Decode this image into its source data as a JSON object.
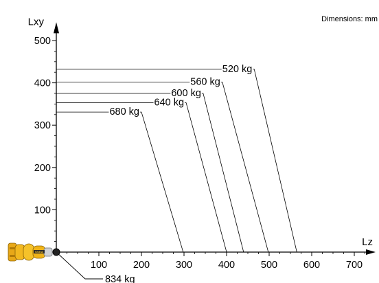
{
  "chart_data": {
    "type": "line",
    "title": "",
    "note": "Dimensions: mm",
    "xlabel": "Lz",
    "ylabel": "Lxy",
    "xlim": [
      0,
      750
    ],
    "ylim": [
      0,
      540
    ],
    "xticks": [
      100,
      200,
      300,
      400,
      500,
      600,
      700
    ],
    "yticks": [
      100,
      200,
      300,
      400,
      500
    ],
    "grid": false,
    "series": [
      {
        "name": "520 kg",
        "points": [
          [
            0,
            432
          ],
          [
            465,
            432
          ],
          [
            565,
            0
          ]
        ]
      },
      {
        "name": "560 kg",
        "points": [
          [
            0,
            402
          ],
          [
            390,
            402
          ],
          [
            498,
            0
          ]
        ]
      },
      {
        "name": "600 kg",
        "points": [
          [
            0,
            375
          ],
          [
            345,
            375
          ],
          [
            440,
            0
          ]
        ]
      },
      {
        "name": "640 kg",
        "points": [
          [
            0,
            353
          ],
          [
            305,
            353
          ],
          [
            400,
            0
          ]
        ]
      },
      {
        "name": "680 kg",
        "points": [
          [
            0,
            331
          ],
          [
            200,
            331
          ],
          [
            298,
            0
          ]
        ]
      }
    ],
    "origin_label": "834 kg"
  }
}
